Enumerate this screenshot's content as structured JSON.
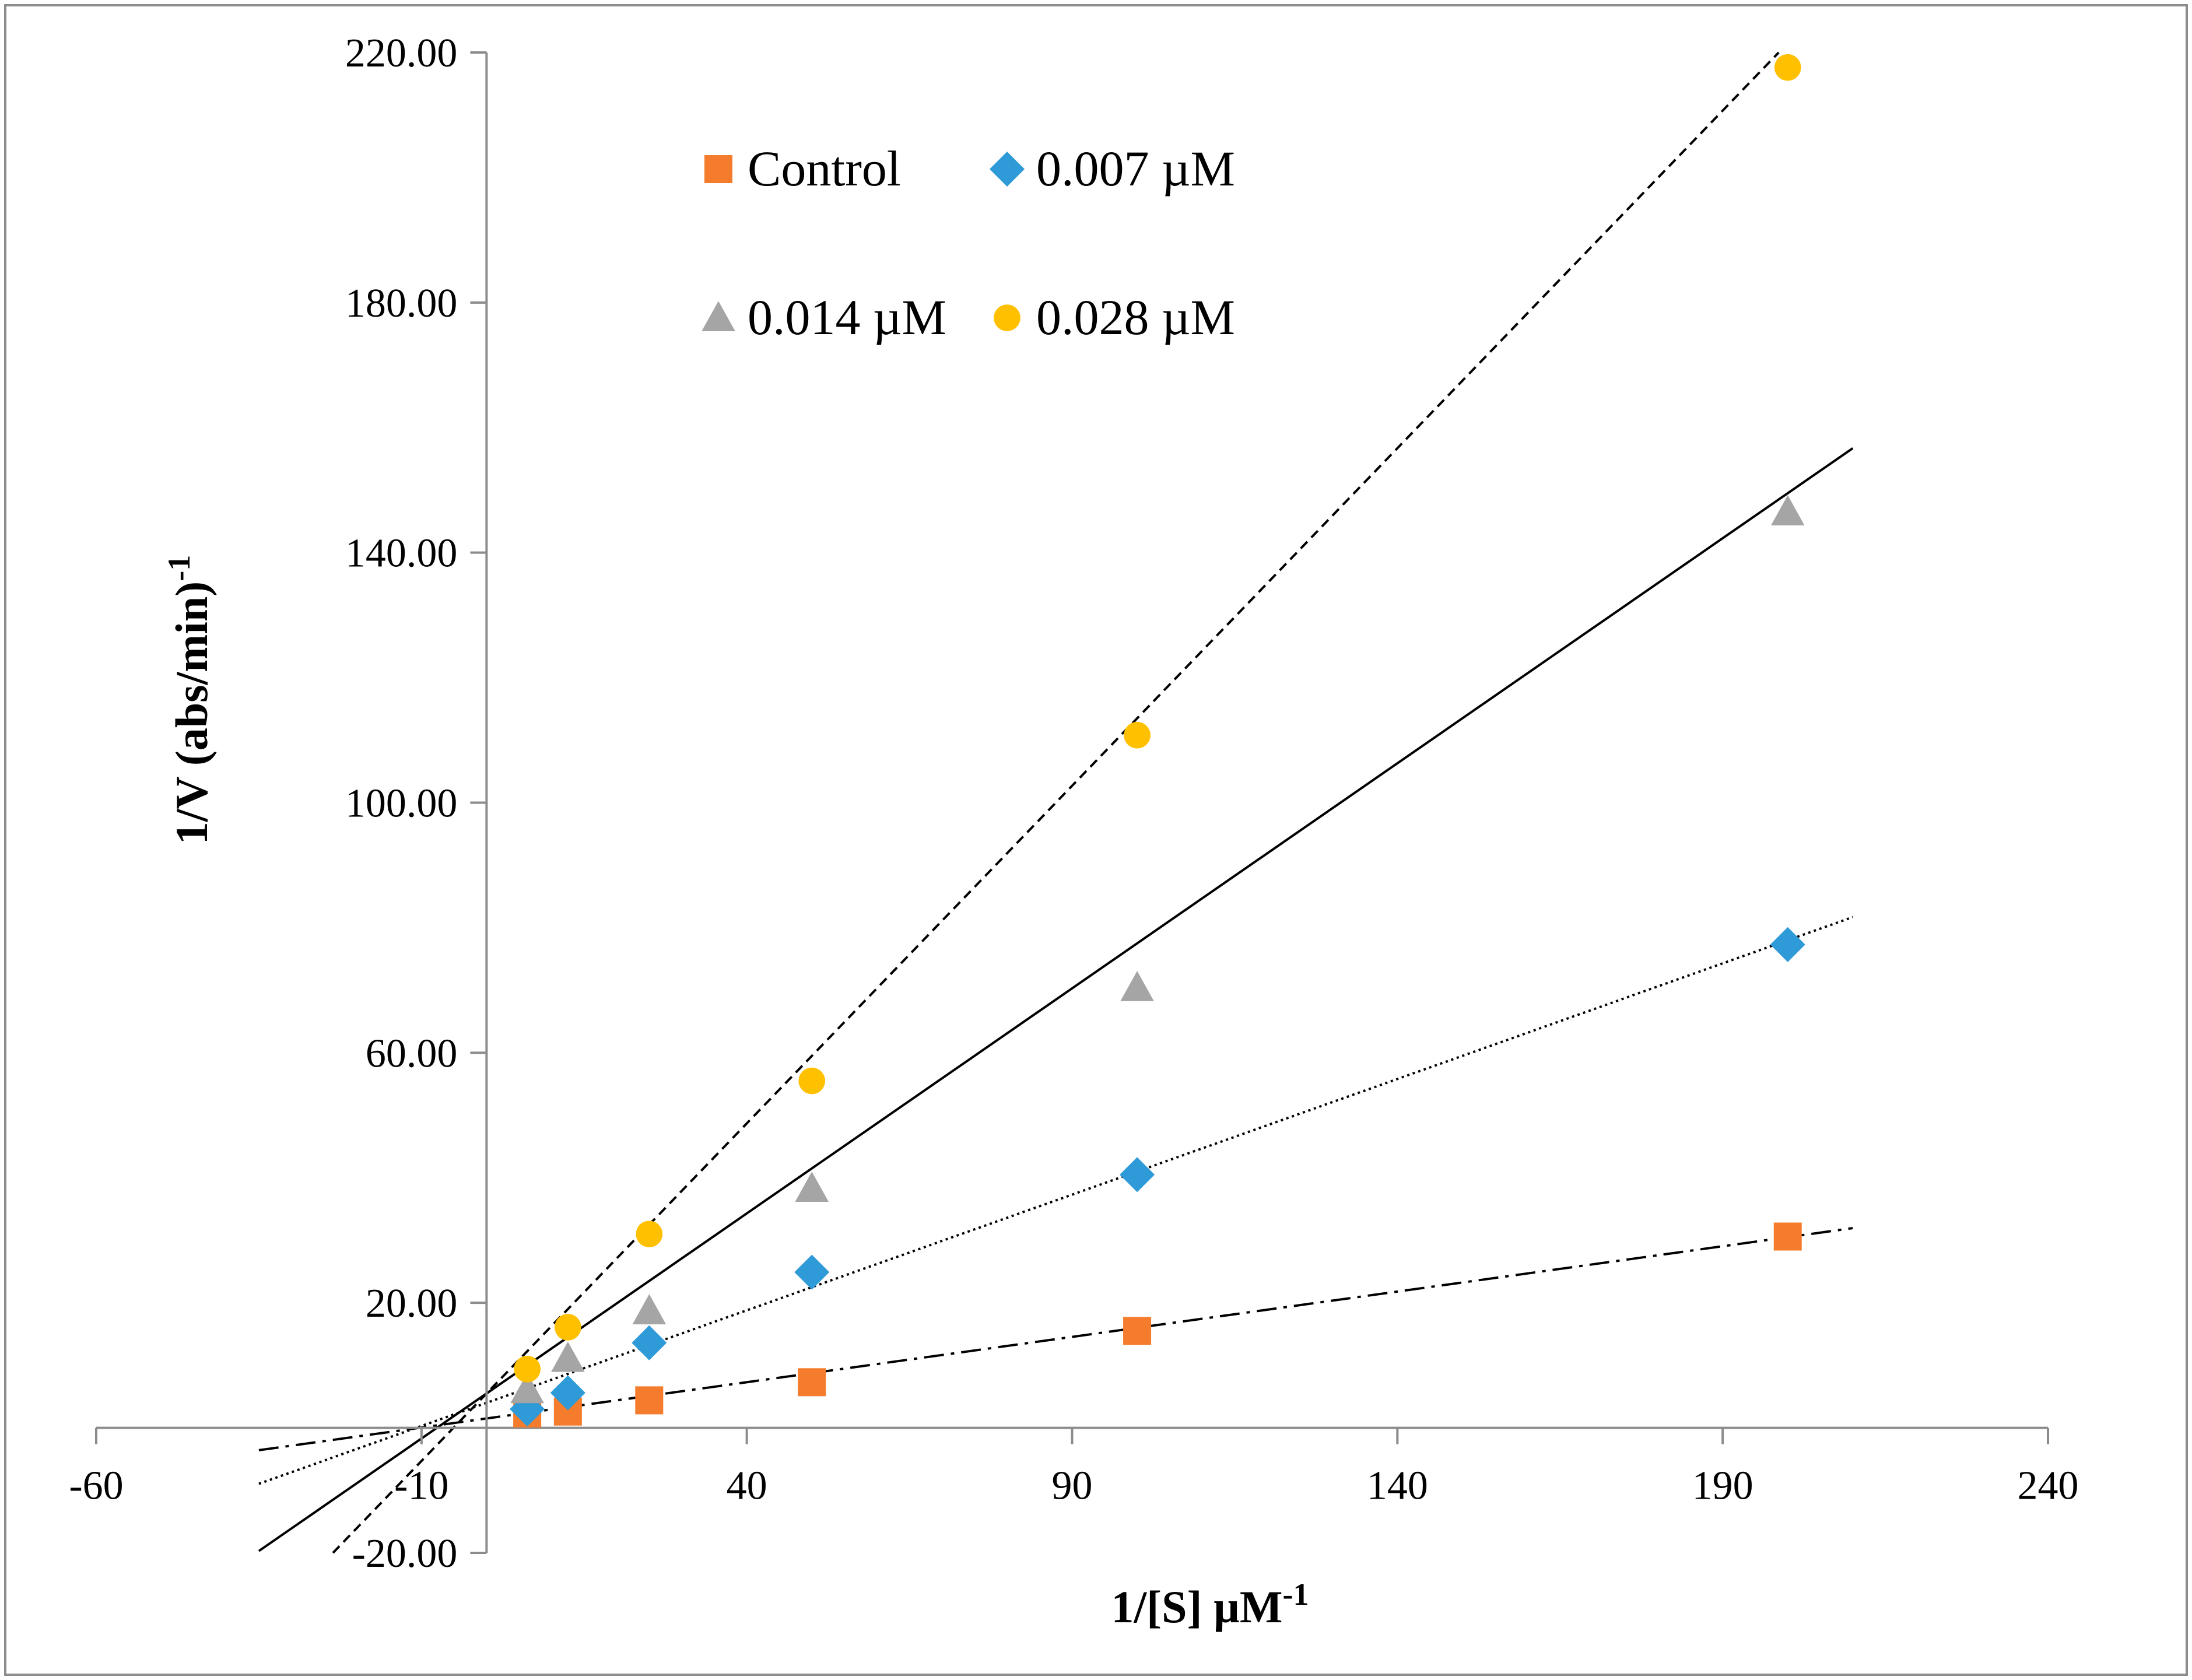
{
  "chart_data": {
    "type": "scatter",
    "title": "",
    "xlabel": "1/[S] µM",
    "xlabel_sup": "-1",
    "ylabel": "1/V (abs/min)",
    "ylabel_sup": "-1",
    "xlim": [
      -60,
      240
    ],
    "ylim": [
      -20,
      220
    ],
    "x_ticks": [
      -60,
      -10,
      40,
      90,
      140,
      190,
      240
    ],
    "x_tick_labels": [
      "-60",
      "-10",
      "40",
      "90",
      "140",
      "190",
      "240"
    ],
    "y_ticks": [
      -20,
      20,
      60,
      100,
      140,
      180,
      220
    ],
    "y_tick_labels": [
      "-20.00",
      "20.00",
      "60.00",
      "100.00",
      "140.00",
      "180.00",
      "220.00"
    ],
    "x_axis_crosses_y_at": 0,
    "y_axis_crosses_x_at": 0,
    "grid": false,
    "legend_position": "top-left",
    "x": [
      6.25,
      12.5,
      25,
      50,
      100,
      200
    ],
    "series": [
      {
        "name": "Control",
        "marker": "square",
        "color": "#F47C2C",
        "line_style": "dash-dot",
        "y": [
          2.3,
          2.6,
          4.4,
          7.3,
          15.5,
          30.6
        ],
        "trend_x_range": [
          -35,
          210
        ],
        "trend": {
          "slope": 0.145,
          "intercept": 1.5
        }
      },
      {
        "name": "0.007 µM",
        "marker": "diamond",
        "color": "#2E9AD8",
        "line_style": "dotted",
        "y": [
          3.0,
          5.6,
          13.6,
          24.9,
          40.5,
          77.3
        ],
        "trend_x_range": [
          -35,
          210
        ],
        "trend": {
          "slope": 0.37,
          "intercept": 4.0
        }
      },
      {
        "name": "0.014 µM",
        "marker": "triangle",
        "color": "#A5A5A5",
        "line_style": "solid",
        "y": [
          6.1,
          11.1,
          18.7,
          38.3,
          70.4,
          146.5
        ],
        "trend_x_range": [
          -35,
          210
        ],
        "trend": {
          "slope": 0.72,
          "intercept": 5.5
        }
      },
      {
        "name": "0.028 µM",
        "marker": "circle",
        "color": "#FFC000",
        "line_style": "dashed",
        "y": [
          9.4,
          16.1,
          31.0,
          55.5,
          110.8,
          217.6
        ],
        "trend_x_range": [
          -35,
          210
        ],
        "trend": {
          "slope": 1.08,
          "intercept": 5.5
        }
      }
    ]
  }
}
